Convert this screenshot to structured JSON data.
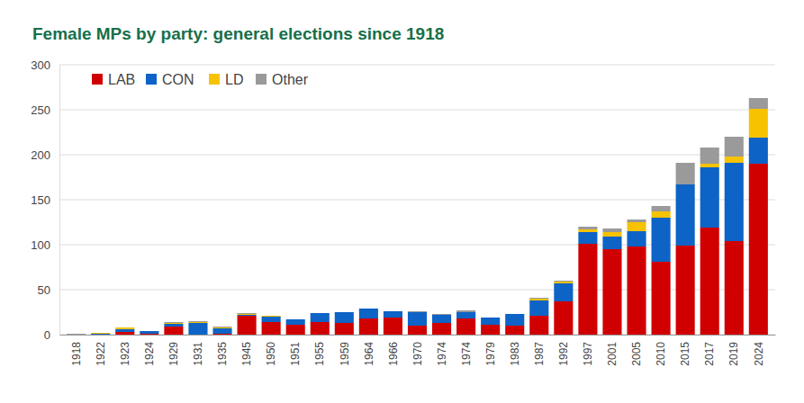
{
  "chart_data": {
    "type": "bar",
    "title": "Female MPs by party: general elections since 1918",
    "categories": [
      "1918",
      "1922",
      "1923",
      "1924",
      "1929",
      "1931",
      "1935",
      "1945",
      "1950",
      "1951",
      "1955",
      "1959",
      "1964",
      "1966",
      "1970",
      "1974",
      "1974",
      "1979",
      "1983",
      "1987",
      "1992",
      "1997",
      "2001",
      "2005",
      "2010",
      "2015",
      "2017",
      "2019",
      "2024"
    ],
    "series": [
      {
        "name": "LAB",
        "color": "#d10000",
        "values": [
          0,
          0,
          3,
          1,
          9,
          0,
          1,
          21,
          14,
          11,
          14,
          13,
          18,
          19,
          10,
          13,
          18,
          11,
          10,
          21,
          37,
          101,
          95,
          98,
          81,
          99,
          119,
          104,
          190
        ]
      },
      {
        "name": "CON",
        "color": "#0d63c6",
        "values": [
          0,
          1,
          3,
          3,
          3,
          13,
          6,
          1,
          6,
          6,
          10,
          12,
          11,
          7,
          15,
          9,
          7,
          8,
          13,
          17,
          20,
          13,
          14,
          17,
          49,
          68,
          67,
          87,
          29
        ]
      },
      {
        "name": "LD",
        "color": "#f7c200",
        "values": [
          0,
          1,
          2,
          0,
          1,
          1,
          1,
          1,
          1,
          0,
          0,
          0,
          0,
          0,
          0,
          0,
          0,
          0,
          0,
          2,
          2,
          3,
          5,
          10,
          7,
          0,
          4,
          7,
          32
        ]
      },
      {
        "name": "Other",
        "color": "#9a9a9a",
        "values": [
          1,
          0,
          0,
          0,
          1,
          1,
          1,
          1,
          0,
          0,
          0,
          0,
          0,
          0,
          1,
          1,
          2,
          0,
          0,
          1,
          1,
          3,
          4,
          3,
          6,
          24,
          18,
          22,
          12
        ]
      }
    ],
    "ylim": [
      0,
      300
    ],
    "yticks": [
      0,
      50,
      100,
      150,
      200,
      250,
      300
    ],
    "stacked": true,
    "grid": true,
    "legend": "top-left"
  }
}
